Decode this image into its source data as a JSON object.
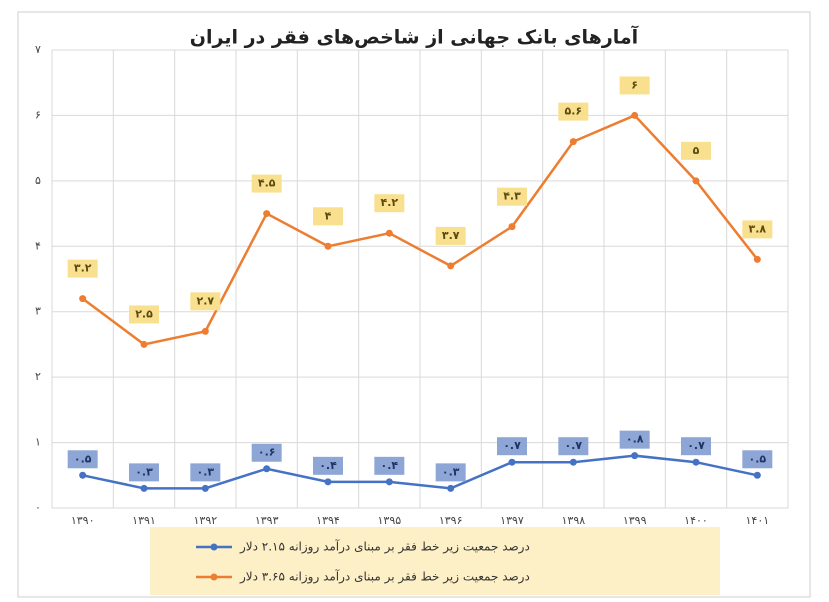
{
  "chart_data": {
    "type": "line",
    "title": "آمارهای بانک جهانی از شاخص‌های فقر در ایران",
    "categories": [
      "۱۳۹۰",
      "۱۳۹۱",
      "۱۳۹۲",
      "۱۳۹۳",
      "۱۳۹۴",
      "۱۳۹۵",
      "۱۳۹۶",
      "۱۳۹۷",
      "۱۳۹۸",
      "۱۳۹۹",
      "۱۴۰۰",
      "۱۴۰۱"
    ],
    "series": [
      {
        "name": "درصد جمعیت زیر خط فقر بر مبنای درآمد روزانه ۲.۱۵ دلار",
        "color": "#4472c4",
        "values": [
          0.5,
          0.3,
          0.3,
          0.6,
          0.4,
          0.4,
          0.3,
          0.7,
          0.7,
          0.8,
          0.7,
          0.5
        ],
        "value_labels": [
          "۰.۵",
          "۰.۳",
          "۰.۳",
          "۰.۶",
          "۰.۴",
          "۰.۴",
          "۰.۳",
          "۰.۷",
          "۰.۷",
          "۰.۸",
          "۰.۷",
          "۰.۵"
        ]
      },
      {
        "name": "درصد جمعیت زیر خط فقر بر مبنای درآمد روزانه ۳.۶۵ دلار",
        "color": "#ed7d31",
        "values": [
          3.2,
          2.5,
          2.7,
          4.5,
          4,
          4.2,
          3.7,
          4.3,
          5.6,
          6,
          5,
          3.8
        ],
        "value_labels": [
          "۳.۲",
          "۲.۵",
          "۲.۷",
          "۴.۵",
          "۴",
          "۴.۲",
          "۳.۷",
          "۴.۳",
          "۵.۶",
          "۶",
          "۵",
          "۳.۸"
        ]
      }
    ],
    "ylim": [
      0,
      7
    ],
    "yticks": [
      {
        "value": 0,
        "label": "۰"
      },
      {
        "value": 1,
        "label": "۱"
      },
      {
        "value": 2,
        "label": "۲"
      },
      {
        "value": 3,
        "label": "۳"
      },
      {
        "value": 4,
        "label": "۴"
      },
      {
        "value": 5,
        "label": "۵"
      },
      {
        "value": 6,
        "label": "۶"
      },
      {
        "value": 7,
        "label": "۷"
      }
    ],
    "grid": true
  }
}
